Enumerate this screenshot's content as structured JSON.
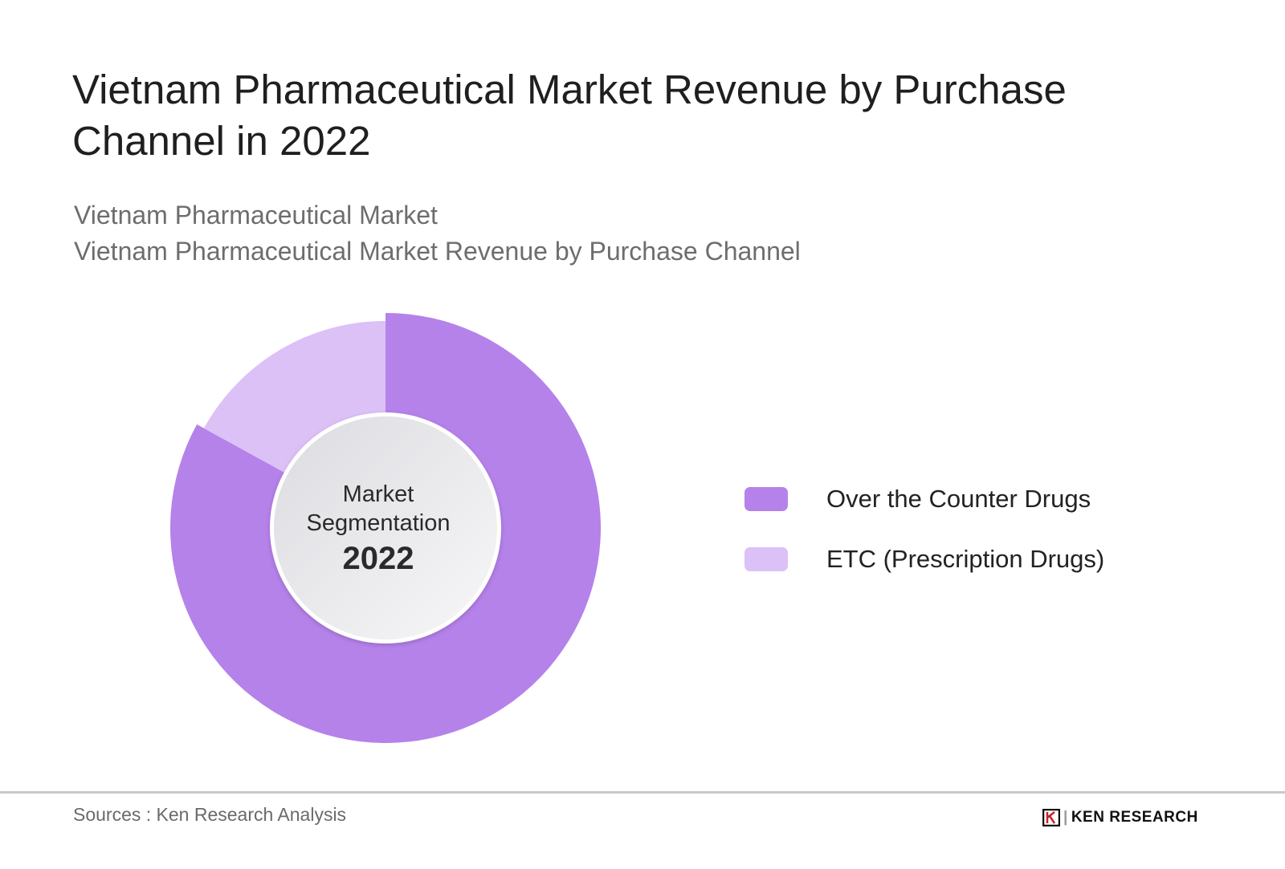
{
  "title": "Vietnam Pharmaceutical Market Revenue by Purchase Channel in 2022",
  "subtitles": [
    "Vietnam Pharmaceutical Market",
    "Vietnam Pharmaceutical Market Revenue by Purchase Channel"
  ],
  "chart_data": {
    "type": "pie",
    "variant": "donut",
    "title": "Vietnam Pharmaceutical Market Revenue by Purchase Channel in 2022",
    "center_label": {
      "line1": "Market",
      "line2": "Segmentation",
      "year": "2022"
    },
    "categories": [
      "Over the Counter Drugs",
      "ETC (Prescription Drugs)"
    ],
    "values": [
      83,
      17
    ],
    "unit": "% share (estimated from slice size, not printed)",
    "colors": [
      "#b582ea",
      "#dcc1f7"
    ],
    "legend_position": "right"
  },
  "footer": {
    "source": "Sources : Ken Research Analysis",
    "logo_text": "KEN RESEARCH"
  }
}
